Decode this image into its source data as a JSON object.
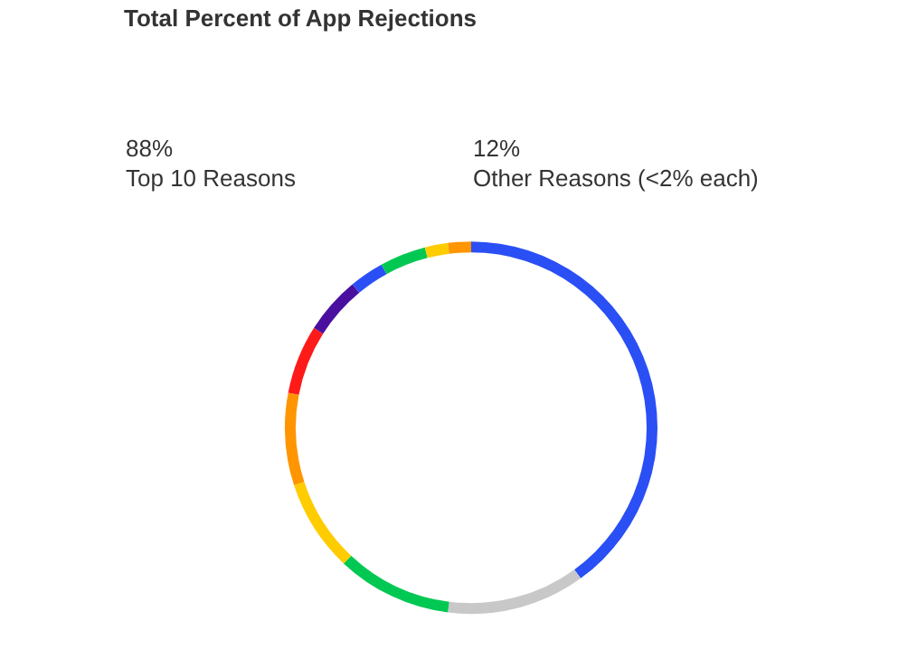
{
  "chart_data": {
    "type": "donut",
    "title": "Total Percent of App Rejections",
    "categories": [
      null,
      null,
      null,
      null,
      null,
      null,
      null,
      null,
      null,
      null,
      null
    ],
    "values": [
      40,
      12,
      10,
      8,
      8,
      6,
      5,
      3,
      4,
      2,
      2
    ],
    "colors": [
      "#2a4ff5",
      "#c8c8c8",
      "#00c853",
      "#ffcc00",
      "#ff9500",
      "#ff1a1a",
      "#4b0fa0",
      "#2a4ff5",
      "#00c853",
      "#ffcc00",
      "#ff9500"
    ],
    "annotations": [
      "88%",
      "Top 10 Reasons",
      "12%",
      "Other Reasons (<2% each)"
    ],
    "legend": false
  }
}
